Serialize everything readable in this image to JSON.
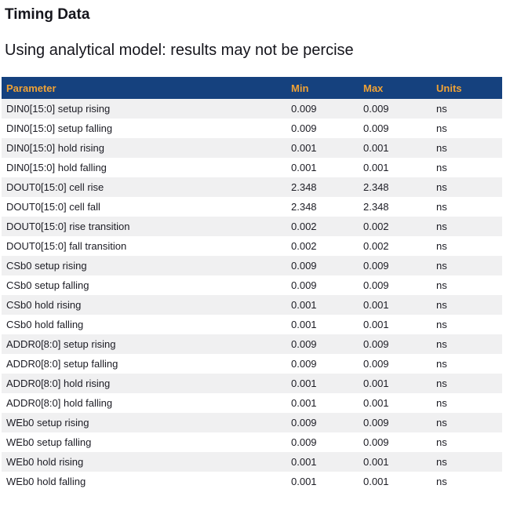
{
  "header": {
    "title": "Timing Data",
    "subtitle": "Using analytical model: results may not be percise"
  },
  "table": {
    "columns": [
      "Parameter",
      "Min",
      "Max",
      "Units"
    ],
    "rows": [
      {
        "parameter": "DIN0[15:0] setup rising",
        "min": "0.009",
        "max": "0.009",
        "units": "ns"
      },
      {
        "parameter": "DIN0[15:0] setup falling",
        "min": "0.009",
        "max": "0.009",
        "units": "ns"
      },
      {
        "parameter": "DIN0[15:0] hold rising",
        "min": "0.001",
        "max": "0.001",
        "units": "ns"
      },
      {
        "parameter": "DIN0[15:0] hold falling",
        "min": "0.001",
        "max": "0.001",
        "units": "ns"
      },
      {
        "parameter": "DOUT0[15:0] cell rise",
        "min": "2.348",
        "max": "2.348",
        "units": "ns"
      },
      {
        "parameter": "DOUT0[15:0] cell fall",
        "min": "2.348",
        "max": "2.348",
        "units": "ns"
      },
      {
        "parameter": "DOUT0[15:0] rise transition",
        "min": "0.002",
        "max": "0.002",
        "units": "ns"
      },
      {
        "parameter": "DOUT0[15:0] fall transition",
        "min": "0.002",
        "max": "0.002",
        "units": "ns"
      },
      {
        "parameter": "CSb0 setup rising",
        "min": "0.009",
        "max": "0.009",
        "units": "ns"
      },
      {
        "parameter": "CSb0 setup falling",
        "min": "0.009",
        "max": "0.009",
        "units": "ns"
      },
      {
        "parameter": "CSb0 hold rising",
        "min": "0.001",
        "max": "0.001",
        "units": "ns"
      },
      {
        "parameter": "CSb0 hold falling",
        "min": "0.001",
        "max": "0.001",
        "units": "ns"
      },
      {
        "parameter": "ADDR0[8:0] setup rising",
        "min": "0.009",
        "max": "0.009",
        "units": "ns"
      },
      {
        "parameter": "ADDR0[8:0] setup falling",
        "min": "0.009",
        "max": "0.009",
        "units": "ns"
      },
      {
        "parameter": "ADDR0[8:0] hold rising",
        "min": "0.001",
        "max": "0.001",
        "units": "ns"
      },
      {
        "parameter": "ADDR0[8:0] hold falling",
        "min": "0.001",
        "max": "0.001",
        "units": "ns"
      },
      {
        "parameter": "WEb0 setup rising",
        "min": "0.009",
        "max": "0.009",
        "units": "ns"
      },
      {
        "parameter": "WEb0 setup falling",
        "min": "0.009",
        "max": "0.009",
        "units": "ns"
      },
      {
        "parameter": "WEb0 hold rising",
        "min": "0.001",
        "max": "0.001",
        "units": "ns"
      },
      {
        "parameter": "WEb0 hold falling",
        "min": "0.001",
        "max": "0.001",
        "units": "ns"
      }
    ]
  },
  "colors": {
    "header_bg": "#15417e",
    "header_text": "#f0a235",
    "row_stripe": "#f0f0f1",
    "body_text": "#1c1c24"
  }
}
